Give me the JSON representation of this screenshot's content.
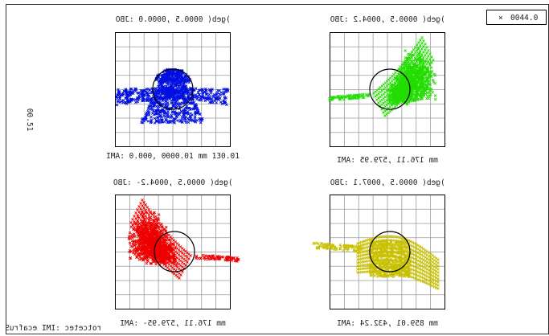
{
  "scale_box": {
    "text": "0044.0",
    "marker": "×"
  },
  "plots": [
    {
      "id": "tl",
      "obj_label": ")geb( 0000.5 ,0000.0 :JBO",
      "ima_label": "IMA: 0.000, 0000.01 mm 130.01",
      "side_label": "00.51",
      "color": "#0010e0",
      "shape": "fan"
    },
    {
      "id": "tr",
      "obj_label": ")geb( 0000.5 ,0004.2 :JBO",
      "ima_label": "mm 176.11 ,579.95 :AMI",
      "color": "#22dd00",
      "shape": "comet-right"
    },
    {
      "id": "bl",
      "obj_label": ")geb( 0000.5 ,0004.2- :JBO",
      "ima_label": "mm 176.11 ,579.95- :AMI",
      "color": "#ee0000",
      "shape": "comet-left"
    },
    {
      "id": "br",
      "obj_label": ")geb( 0000.5 ,0007.1 :JBO",
      "ima_label": "mm 859.01 ,432.24 :AMI",
      "color": "#c8c000",
      "shape": "sweep"
    }
  ],
  "footer": {
    "surface_label": "rotcetec :IMI ecafruS"
  }
}
